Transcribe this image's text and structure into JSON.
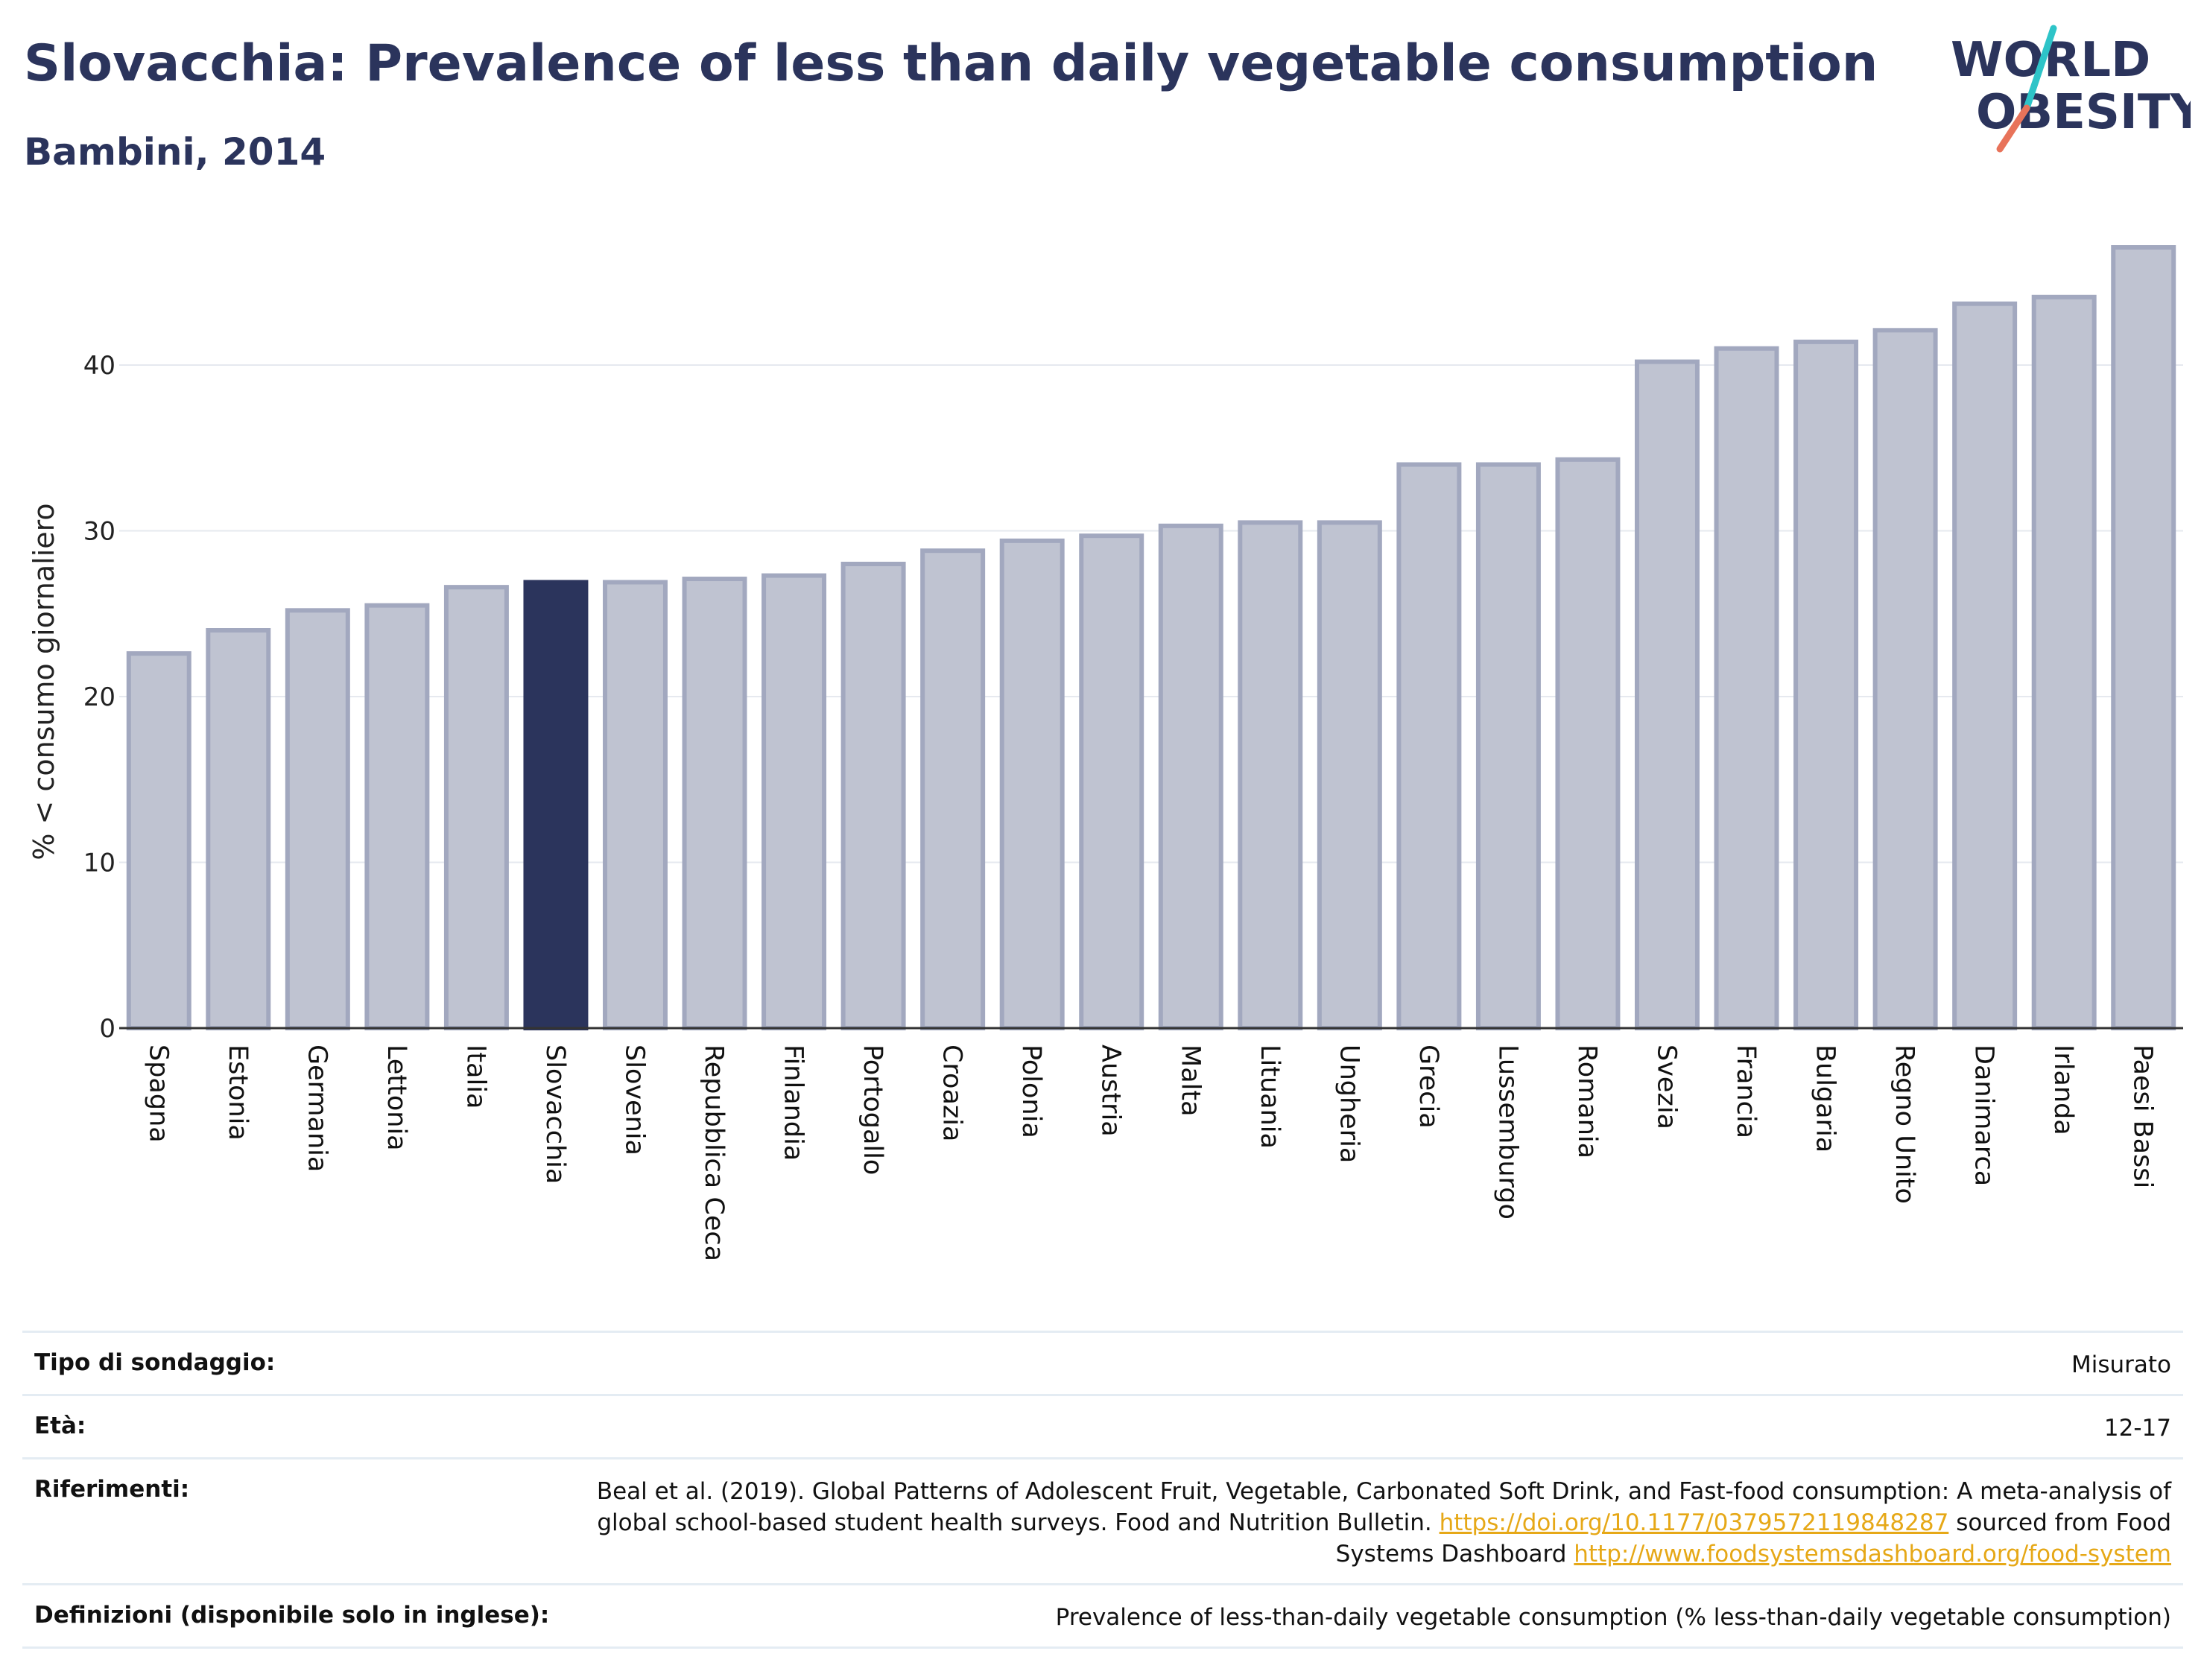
{
  "header": {
    "title": "Slovacchia: Prevalence of less than daily vegetable consumption",
    "subtitle": "Bambini, 2014"
  },
  "logo": {
    "line1": "WORLD",
    "line2": "OBESITY",
    "accent_colors": [
      "#2ec4c8",
      "#e8735a"
    ]
  },
  "colors": {
    "bar": "#bfc3d1",
    "bar_stroke": "#a2a8bf",
    "highlight": "#2b345c",
    "text_dark": "#2b345c",
    "link": "#e6a817"
  },
  "chart_data": {
    "type": "bar",
    "title": "Slovacchia: Prevalence of less than daily vegetable consumption",
    "subtitle": "Bambini, 2014",
    "ylabel": "% < consumo giornaliero",
    "xlabel": "",
    "ylim": [
      0,
      48
    ],
    "yticks": [
      0,
      10,
      20,
      30,
      40
    ],
    "grid": true,
    "highlight": "Slovacchia",
    "categories": [
      "Spagna",
      "Estonia",
      "Germania",
      "Lettonia",
      "Italia",
      "Slovacchia",
      "Slovenia",
      "Repubblica Ceca",
      "Finlandia",
      "Portogallo",
      "Croazia",
      "Polonia",
      "Austria",
      "Malta",
      "Lituania",
      "Ungheria",
      "Grecia",
      "Lussemburgo",
      "Romania",
      "Svezia",
      "Francia",
      "Bulgaria",
      "Regno Unito",
      "Danimarca",
      "Irlanda",
      "Paesi Bassi"
    ],
    "values": [
      22.6,
      24.0,
      25.2,
      25.5,
      26.6,
      26.9,
      26.9,
      27.1,
      27.3,
      28.0,
      28.8,
      29.4,
      29.7,
      30.3,
      30.5,
      30.5,
      34.0,
      34.0,
      34.3,
      40.2,
      41.0,
      41.4,
      42.1,
      43.7,
      44.1,
      47.1
    ]
  },
  "info": {
    "survey_label": "Tipo di sondaggio:",
    "survey_value": "Misurato",
    "age_label": "Età:",
    "age_value": "12-17",
    "ref_label": "Riferimenti:",
    "ref_text_1": "Beal et al. (2019). Global Patterns of Adolescent Fruit, Vegetable, Carbonated Soft Drink, and Fast-food consumption: A meta-analysis of global school-based student health surveys. Food and Nutrition Bulletin.",
    "ref_link_1": "https://doi.org/10.1177/0379572119848287",
    "ref_text_2": "sourced from Food Systems Dashboard",
    "ref_link_2": "http://www.foodsystemsdashboard.org/food-system",
    "def_label": "Definizioni (disponibile solo in inglese):",
    "def_value": "Prevalence of less-than-daily vegetable consumption (% less-than-daily vegetable consumption)"
  }
}
